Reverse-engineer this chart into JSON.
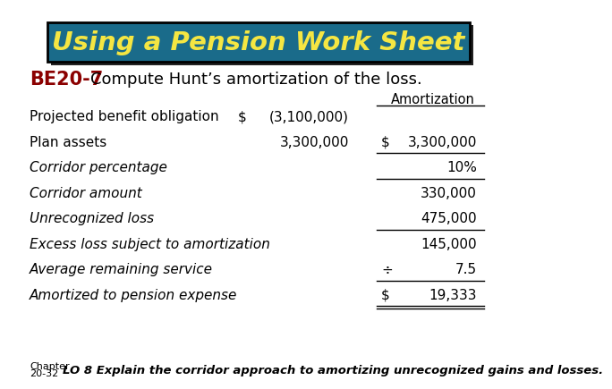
{
  "title": "Using a Pension Work Sheet",
  "title_bg_color": "#1a6b8a",
  "title_text_color": "#f5e642",
  "be_label": "BE20-7",
  "be_label_color": "#8b0000",
  "subtitle": "Compute Hunt’s amortization of the loss.",
  "subtitle_color": "#000000",
  "col_header": "Amortization",
  "rows": [
    {
      "label": "Projected benefit obligation",
      "italic": false,
      "c1": "$",
      "c2": "(3,100,000)",
      "c3": "",
      "c4": ""
    },
    {
      "label": "Plan assets",
      "italic": false,
      "c1": "",
      "c2": "3,300,000",
      "c3": "$",
      "c4": "3,300,000"
    },
    {
      "label": "Corridor percentage",
      "italic": true,
      "c1": "",
      "c2": "",
      "c3": "",
      "c4": "10%"
    },
    {
      "label": "Corridor amount",
      "italic": true,
      "c1": "",
      "c2": "",
      "c3": "",
      "c4": "330,000"
    },
    {
      "label": "Unrecognized loss",
      "italic": true,
      "c1": "",
      "c2": "",
      "c3": "",
      "c4": "475,000"
    },
    {
      "label": "Excess loss subject to amortization",
      "italic": true,
      "c1": "",
      "c2": "",
      "c3": "",
      "c4": "145,000"
    },
    {
      "label": "Average remaining service",
      "italic": true,
      "c1": "",
      "c2": "",
      "c3": "÷",
      "c4": "7.5"
    },
    {
      "label": "Amortized to pension expense",
      "italic": true,
      "c1": "",
      "c2": "",
      "c3": "$",
      "c4": "19,333"
    }
  ],
  "underline_after": [
    1,
    2,
    4,
    6,
    7
  ],
  "double_underline_after": [
    7
  ],
  "footer_chapter": "Chapter\n20-32",
  "footer_text": "LO 8 Explain the corridor approach to amortizing unrecognized gains and losses.",
  "bg_color": "#ffffff"
}
